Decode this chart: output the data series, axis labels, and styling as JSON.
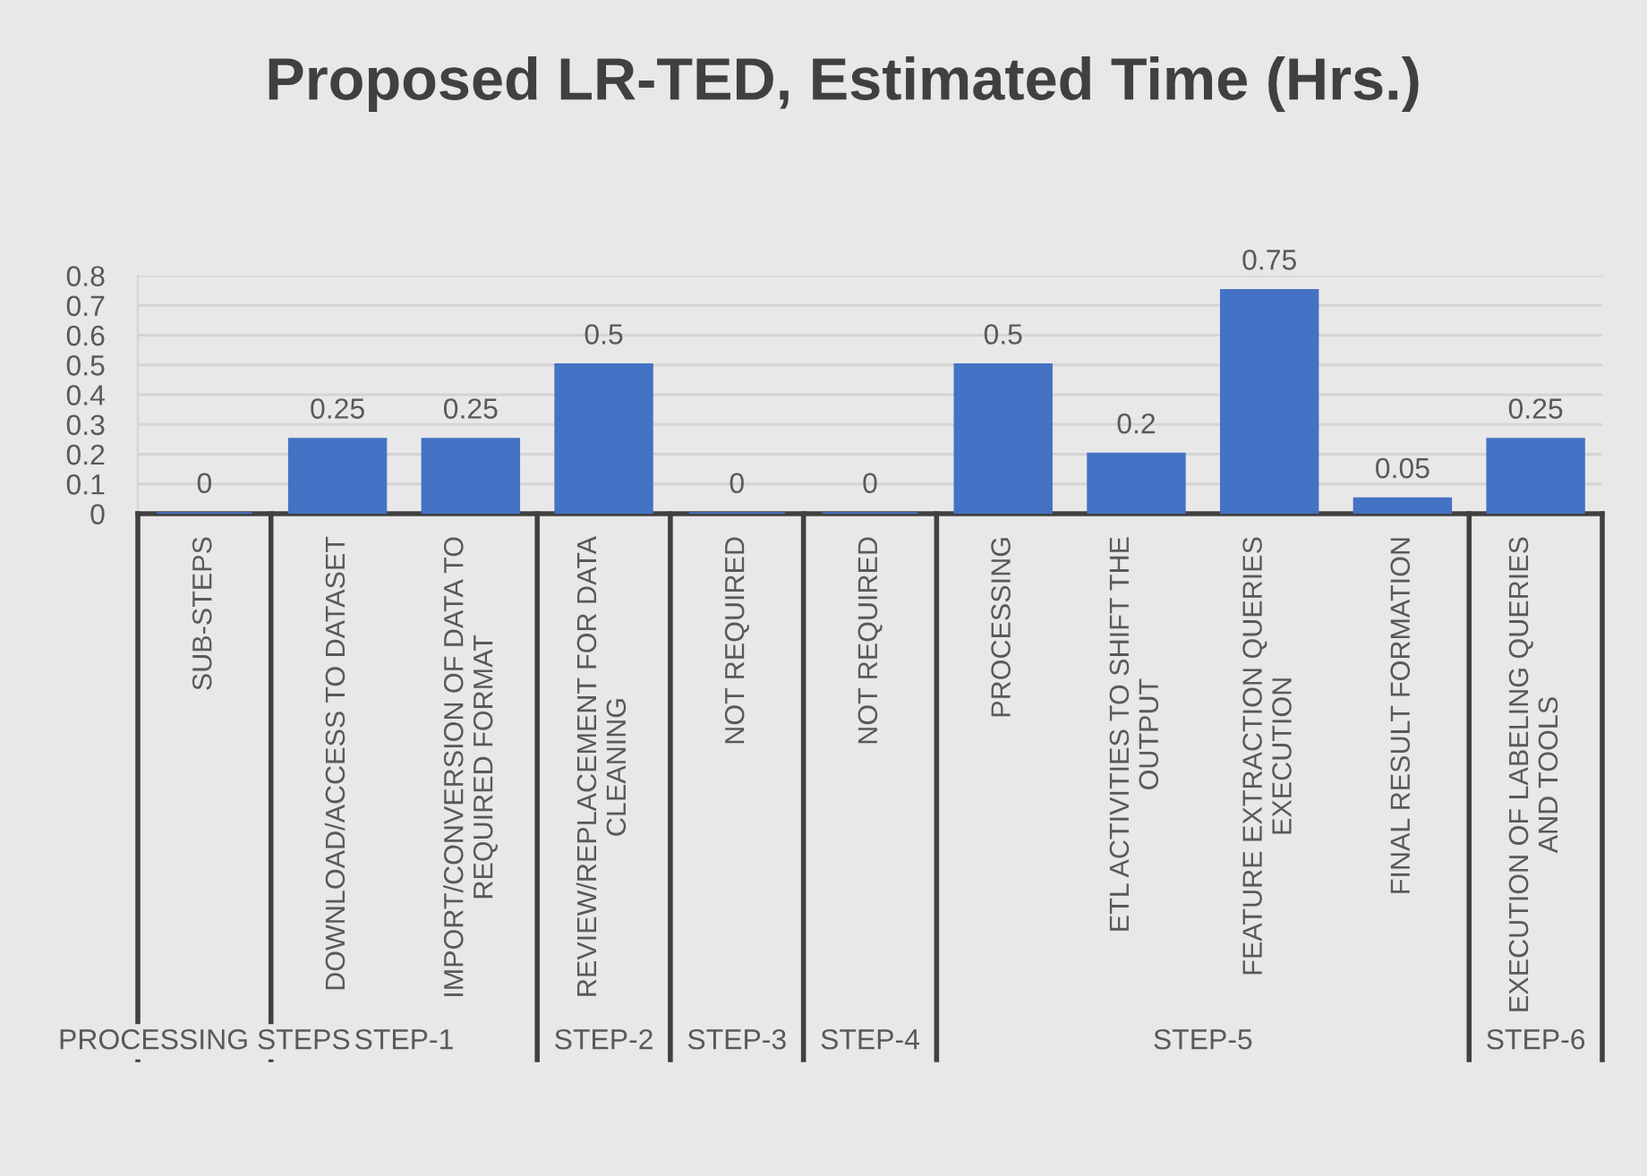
{
  "chart_data": {
    "type": "bar",
    "title": "Proposed LR-TED, Estimated Time (Hrs.)",
    "categories": [
      "SUB-STEPS",
      "DOWNLOAD/ACCESS TO DATASET",
      "IMPORT/CONVERSION OF DATA TO\nREQUIRED FORMAT",
      "REVIEW/REPLACEMENT FOR DATA\nCLEANING",
      "NOT REQUIRED",
      "NOT REQUIRED",
      "PROCESSING",
      "ETL ACTIVITIES TO SHIFT THE\nOUTPUT",
      "FEATURE EXTRACTION QUERIES\nEXECUTION",
      "FINAL RESULT FORMATION",
      "EXECUTION OF LABELING QUERIES\nAND TOOLS"
    ],
    "values": [
      0,
      0.25,
      0.25,
      0.5,
      0,
      0,
      0.5,
      0.2,
      0.75,
      0.05,
      0.25
    ],
    "color": "#4472c4",
    "ylim": [
      0,
      0.8
    ],
    "yticks": [
      0,
      0.1,
      0.2,
      0.3,
      0.4,
      0.5,
      0.6,
      0.7,
      0.8
    ],
    "grid": "y",
    "data_labels": true,
    "annotations": [
      "PROCESSING STEPS",
      "STEP-1",
      "STEP-2",
      "STEP-3",
      "STEP-4",
      "STEP-5",
      "STEP-6"
    ]
  }
}
